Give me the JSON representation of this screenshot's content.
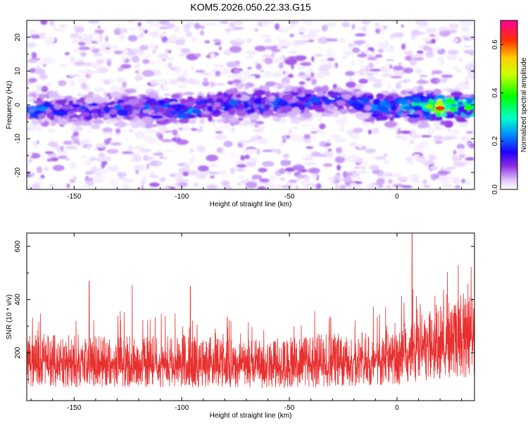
{
  "title": "KOM5.2026.050.22.33.G15",
  "chart_data": [
    {
      "type": "heatmap",
      "title": "KOM5.2026.050.22.33.G15",
      "xlabel": "Height of straight line (km)",
      "ylabel": "Frequency (Hz)",
      "xlim": [
        -172,
        36
      ],
      "ylim": [
        -25,
        25
      ],
      "xticks": [
        -150,
        -100,
        -50,
        0
      ],
      "yticks": [
        -20,
        -10,
        0,
        10,
        20
      ],
      "x_tick_labels": [
        "-150",
        "-100",
        "-50",
        "0"
      ],
      "y_tick_labels": [
        "-20",
        "-10",
        "0",
        "10",
        "20"
      ],
      "ridge": {
        "description": "bright band near 0 Hz across all heights, strongest at right",
        "frequency_center_hz": [
          [
            -170,
            -1.5
          ],
          [
            -150,
            -1.5
          ],
          [
            -125,
            -1.0
          ],
          [
            -100,
            -1.5
          ],
          [
            -75,
            0.5
          ],
          [
            -50,
            0.5
          ],
          [
            -25,
            1.5
          ],
          [
            -10,
            -1.0
          ],
          [
            0,
            -0.5
          ],
          [
            15,
            -0.5
          ],
          [
            20,
            -1.0
          ],
          [
            33,
            -1.0
          ]
        ],
        "peak_amplitude": [
          [
            -170,
            0.25
          ],
          [
            -150,
            0.2
          ],
          [
            -125,
            0.22
          ],
          [
            -100,
            0.27
          ],
          [
            -75,
            0.22
          ],
          [
            -50,
            0.22
          ],
          [
            -25,
            0.2
          ],
          [
            -10,
            0.25
          ],
          [
            0,
            0.3
          ],
          [
            15,
            0.45
          ],
          [
            20,
            0.62
          ],
          [
            33,
            0.4
          ]
        ]
      }
    },
    {
      "type": "colorbar",
      "label": "Normalized spectral amplitude",
      "range": [
        0,
        0.7
      ],
      "ticks": [
        0.0,
        0.2,
        0.4,
        0.6
      ],
      "tick_labels": [
        "0.0",
        "0.2",
        "0.4",
        "0.6"
      ]
    },
    {
      "type": "line",
      "xlabel": "Height of straight line (km)",
      "ylabel": "SNR (10 * v/v)",
      "xlim": [
        -172,
        36
      ],
      "ylim": [
        20,
        650
      ],
      "xticks": [
        -150,
        -100,
        -50,
        0
      ],
      "yticks": [
        200,
        400,
        600
      ],
      "x_tick_labels": [
        "-150",
        "-100",
        "-50",
        "0"
      ],
      "y_tick_labels": [
        "200",
        "400",
        "600"
      ],
      "series": [
        {
          "name": "SNR",
          "color": "#e8302f",
          "baseline": [
            [
              -172,
              130
            ],
            [
              -150,
              128
            ],
            [
              -120,
              125
            ],
            [
              -100,
              128
            ],
            [
              -75,
              120
            ],
            [
              -50,
              122
            ],
            [
              -25,
              132
            ],
            [
              0,
              140
            ],
            [
              10,
              170
            ],
            [
              25,
              190
            ],
            [
              36,
              200
            ]
          ],
          "notable_peaks": [
            [
              -143,
              470
            ],
            [
              -123,
              455
            ],
            [
              -96,
              450
            ],
            [
              7,
              650
            ],
            [
              33,
              460
            ]
          ]
        }
      ]
    }
  ]
}
